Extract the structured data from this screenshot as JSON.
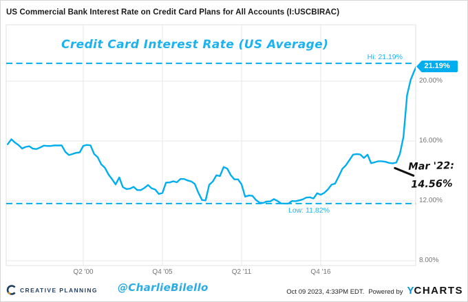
{
  "header": {
    "title": "US Commercial Bank Interest Rate on Credit Card Plans for All Accounts (I:USCBIRAC)"
  },
  "chart_data": {
    "type": "line",
    "title": "Credit Card Interest Rate (US Average)",
    "series": [
      {
        "name": "US Commercial Bank Interest Rate on Credit Card Plans, All Accounts (%)",
        "x_start": 1995.0,
        "x_step": 0.25,
        "values": [
          15.79,
          16.12,
          15.9,
          15.73,
          15.5,
          15.61,
          15.65,
          15.49,
          15.46,
          15.57,
          15.69,
          15.67,
          15.67,
          15.71,
          15.7,
          15.71,
          15.28,
          15.06,
          15.13,
          15.21,
          15.24,
          15.68,
          15.74,
          15.71,
          15.14,
          14.92,
          14.44,
          14.21,
          13.77,
          13.45,
          13.1,
          13.57,
          12.92,
          12.79,
          12.82,
          12.94,
          12.72,
          12.72,
          12.87,
          13.06,
          12.84,
          12.76,
          12.46,
          12.53,
          13.22,
          13.23,
          13.31,
          13.24,
          13.46,
          13.46,
          13.36,
          13.3,
          13.13,
          12.54,
          12.06,
          12.03,
          13.08,
          13.29,
          13.71,
          13.66,
          14.26,
          14.16,
          13.72,
          13.44,
          13.44,
          13.1,
          12.28,
          12.36,
          12.34,
          12.06,
          11.88,
          11.86,
          11.96,
          11.97,
          12.12,
          11.99,
          11.83,
          11.82,
          11.82,
          11.99,
          11.98,
          12.03,
          12.1,
          12.22,
          12.24,
          12.16,
          12.51,
          12.41,
          12.54,
          12.77,
          13.08,
          13.16,
          13.63,
          14.14,
          14.38,
          14.73,
          15.09,
          15.13,
          15.1,
          14.87,
          15.09,
          14.52,
          14.58,
          14.65,
          14.65,
          14.61,
          14.54,
          14.51,
          14.56,
          15.13,
          16.27,
          19.07,
          20.09,
          20.68,
          21.19
        ]
      }
    ],
    "x_ticks": [
      {
        "label": "Q2 '00",
        "t": 2000.25
      },
      {
        "label": "Q4 '05",
        "t": 2005.75
      },
      {
        "label": "Q2 '11",
        "t": 2011.25
      },
      {
        "label": "Q4 '16",
        "t": 2016.75
      }
    ],
    "y_ticks": [
      {
        "label": "20.00%",
        "v": 20
      },
      {
        "label": "16.00%",
        "v": 16
      },
      {
        "label": "12.00%",
        "v": 12
      },
      {
        "label": "8.00%",
        "v": 8
      }
    ],
    "ylim": [
      7.68,
      23.77
    ],
    "grid": true,
    "legend": "none",
    "annotations": {
      "hi": {
        "label": "Hi: 21.19%",
        "value": 21.19
      },
      "low": {
        "label": "Low: 11.82%",
        "value": 11.82
      },
      "end_tag": {
        "label": "21.19%",
        "value": 21.19
      },
      "callout": {
        "line1": "Mar '22:",
        "line2": "14.56%",
        "t": 2022.0,
        "value": 14.56
      }
    },
    "colors": {
      "line": "#00adef",
      "dashed": "#00adef",
      "grid": "#e7e7e7",
      "border": "#e0e0e0",
      "axis_text": "#757575",
      "annotation": "#111111"
    }
  },
  "footer": {
    "brand": "CREATIVE PLANNING",
    "handle": "@CharlieBilello",
    "timestamp": "Oct 09 2023, 4:33PM EDT.",
    "powered_by": "Powered by",
    "ycharts_y": "Y",
    "ycharts_rest": "CHARTS"
  }
}
